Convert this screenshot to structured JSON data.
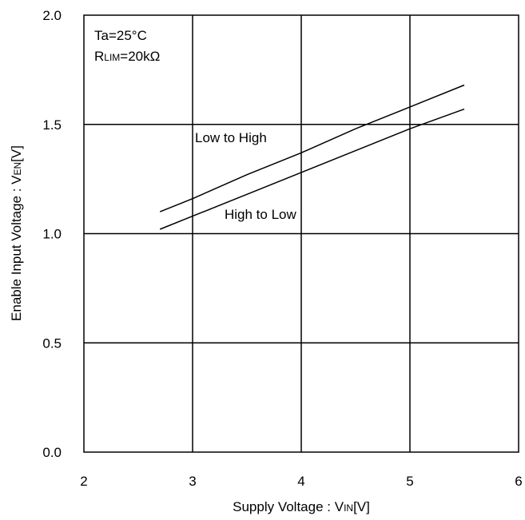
{
  "chart_data": {
    "type": "line",
    "xlabel": {
      "main": "Supply Voltage : V",
      "sub": "IN",
      "unit": "[V]"
    },
    "ylabel": {
      "main": "Enable Input Voltage : V",
      "sub": "EN",
      "unit": "[V]"
    },
    "xlim": [
      2,
      6
    ],
    "ylim": [
      0.0,
      2.0
    ],
    "x_ticks": [
      "2",
      "3",
      "4",
      "5",
      "6"
    ],
    "y_ticks": [
      "0.0",
      "0.5",
      "1.0",
      "1.5",
      "2.0"
    ],
    "grid": true,
    "conditions": {
      "line1": "Ta=25°C",
      "line2_prefix": "R",
      "line2_sub": "LIM",
      "line2_suffix": "=20kΩ"
    },
    "series": [
      {
        "name": "Low to High",
        "x": [
          2.7,
          3.0,
          3.5,
          4.0,
          4.5,
          5.0,
          5.5
        ],
        "y": [
          1.1,
          1.16,
          1.27,
          1.37,
          1.48,
          1.58,
          1.68
        ]
      },
      {
        "name": "High to Low",
        "x": [
          2.7,
          3.0,
          3.5,
          4.0,
          4.5,
          5.0,
          5.5
        ],
        "y": [
          1.02,
          1.08,
          1.18,
          1.28,
          1.38,
          1.48,
          1.57
        ]
      }
    ]
  }
}
